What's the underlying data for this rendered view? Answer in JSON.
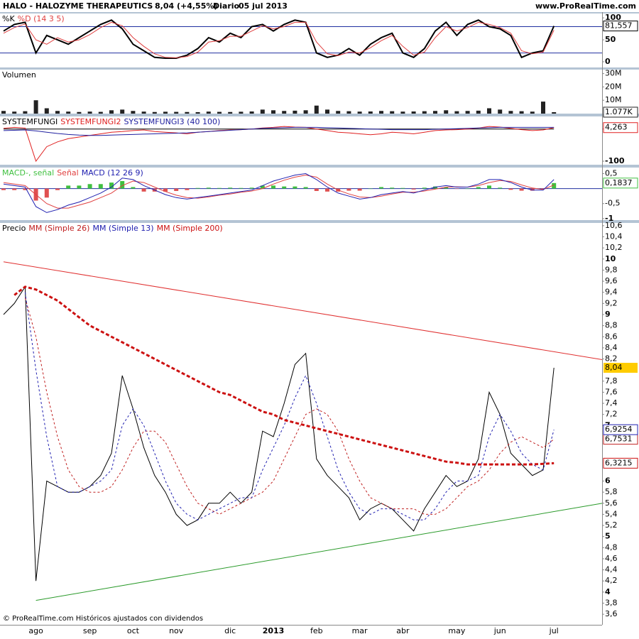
{
  "header": {
    "title": "HALO - HALOZYME THERAPEUTICS",
    "quote": "8,04 (+4,55%)",
    "period": "Diario",
    "date": "05 jul 2013",
    "site": "www.ProRealTime.com"
  },
  "footer": "© ProRealTime.com Históricos ajustados con dividendos",
  "chart_data": [
    {
      "type": "line",
      "ylim": [
        -13,
        110
      ],
      "yticks": [
        0,
        50,
        100
      ],
      "levels": [
        80,
        20
      ],
      "level_color": "#2030a0",
      "series": [
        {
          "name": "%K",
          "color": "#000000",
          "width": 2,
          "last_label": "81,557",
          "values": [
            70,
            85,
            90,
            20,
            60,
            50,
            40,
            55,
            70,
            85,
            95,
            75,
            40,
            25,
            10,
            8,
            8,
            15,
            30,
            55,
            45,
            65,
            55,
            80,
            85,
            70,
            85,
            95,
            90,
            20,
            10,
            15,
            30,
            15,
            40,
            55,
            65,
            20,
            10,
            30,
            70,
            90,
            60,
            85,
            95,
            80,
            75,
            60,
            10,
            20,
            25,
            81.557
          ]
        },
        {
          "name": "%D (14 3 5)",
          "color": "#e04040",
          "values": [
            65,
            78,
            86,
            50,
            40,
            55,
            45,
            50,
            62,
            78,
            90,
            82,
            55,
            35,
            18,
            10,
            9,
            12,
            22,
            45,
            48,
            58,
            58,
            70,
            82,
            75,
            80,
            90,
            90,
            45,
            18,
            14,
            22,
            20,
            32,
            48,
            60,
            35,
            15,
            22,
            55,
            80,
            70,
            78,
            90,
            85,
            78,
            65,
            25,
            18,
            22,
            72
          ]
        }
      ]
    },
    {
      "type": "bar",
      "title": "Volumen",
      "ylim": [
        0,
        33
      ],
      "yticks": [
        {
          "value": 10,
          "label": "10M"
        },
        {
          "value": 20,
          "label": "20M"
        },
        {
          "value": 30,
          "label": "30M"
        }
      ],
      "series": [
        {
          "color": "#222222",
          "last_label": "1.077K",
          "values": [
            2,
            1.5,
            1.8,
            10,
            4,
            2,
            1.5,
            1.2,
            1.5,
            1.3,
            2.5,
            3,
            2,
            1.5,
            1.2,
            1.4,
            1.3,
            1.2,
            1.1,
            1.5,
            1.3,
            1.2,
            1.4,
            1.6,
            3,
            2.5,
            2,
            2.2,
            2.5,
            6,
            3,
            2,
            1.8,
            1.5,
            1.6,
            2,
            1.8,
            1.5,
            1.6,
            1.8,
            2,
            2.5,
            1.8,
            2,
            2.2,
            4,
            3,
            2,
            1.8,
            1.5,
            9,
            1.077
          ]
        }
      ]
    },
    {
      "type": "line",
      "ylim": [
        -111,
        39
      ],
      "yticks": [
        0,
        -100
      ],
      "series": [
        {
          "name": "SYSTEMFUNGI",
          "color": "#000000",
          "values": [
            0,
            0,
            0,
            0,
            0,
            0,
            0,
            0,
            0,
            0,
            0,
            0,
            0,
            0,
            0,
            0,
            0,
            0,
            0,
            0,
            0,
            0,
            0,
            0,
            0,
            0,
            0,
            0,
            0,
            0,
            0,
            0,
            0,
            0,
            0,
            0,
            0,
            0,
            0,
            0,
            0,
            0,
            0,
            0,
            0,
            0,
            0,
            0,
            0,
            0,
            0,
            0
          ]
        },
        {
          "name": "SYSTEMFUNGI2",
          "color": "#e02020",
          "last_label": "4,263",
          "values": [
            2,
            5,
            3,
            -100,
            -55,
            -40,
            -30,
            -25,
            -20,
            -15,
            -10,
            -8,
            -5,
            -3,
            -8,
            -10,
            -12,
            -15,
            -10,
            -8,
            -5,
            -3,
            -2,
            0,
            3,
            5,
            8,
            6,
            5,
            0,
            -5,
            -10,
            -12,
            -15,
            -18,
            -15,
            -10,
            -12,
            -15,
            -10,
            -5,
            -3,
            -2,
            0,
            3,
            8,
            6,
            2,
            -2,
            -5,
            -3,
            4.263
          ]
        },
        {
          "name": "SYSTEMFUNGI3 (40 100)",
          "color": "#2020a0",
          "values": [
            -5,
            -4,
            -3,
            -6,
            -10,
            -14,
            -17,
            -19,
            -20,
            -20,
            -19,
            -18,
            -17,
            -16,
            -15,
            -14,
            -13,
            -12,
            -10,
            -8,
            -6,
            -4,
            -2,
            0,
            2,
            3,
            4,
            5,
            5,
            5,
            4,
            3,
            2,
            1,
            0,
            -1,
            -2,
            -2,
            -2,
            -2,
            -1,
            0,
            1,
            2,
            3,
            4,
            5,
            5,
            5,
            5,
            5,
            5
          ]
        }
      ]
    },
    {
      "type": "line",
      "ylim": [
        -1.05,
        0.7
      ],
      "levels": [
        0
      ],
      "level_color": "#2030a0",
      "yticks": [
        {
          "value": 0.5,
          "label": "0,5"
        },
        {
          "value": -0.5,
          "label": "-0,5"
        },
        -1
      ],
      "series": [
        {
          "name": "MACD-, señal",
          "type": "bar",
          "color": "#40c040",
          "negative_color": "#e05050",
          "last_label": "0,1837",
          "values": [
            -0.05,
            -0.05,
            -0.05,
            -0.4,
            -0.3,
            -0.05,
            0.1,
            0.1,
            0.15,
            0.15,
            0.2,
            0.25,
            0.05,
            -0.1,
            -0.1,
            -0.1,
            -0.08,
            -0.05,
            0.02,
            0.03,
            0.02,
            0.03,
            0.02,
            0.03,
            0.1,
            0.1,
            0.07,
            0.07,
            0.05,
            -0.08,
            -0.1,
            -0.1,
            -0.07,
            -0.07,
            0,
            0.05,
            0.03,
            0.02,
            -0.03,
            0.03,
            0.07,
            0.05,
            -0.01,
            0,
            0.05,
            0.1,
            0.03,
            -0.04,
            -0.07,
            -0.07,
            -0.02,
            0.1837
          ]
        },
        {
          "name": "Señal",
          "color": "#e04040",
          "values": [
            0.2,
            0.15,
            0.1,
            -0.2,
            -0.5,
            -0.65,
            -0.65,
            -0.55,
            -0.45,
            -0.3,
            -0.15,
            0.1,
            0.25,
            0.2,
            0.05,
            -0.1,
            -0.22,
            -0.3,
            -0.32,
            -0.28,
            -0.22,
            -0.18,
            -0.12,
            -0.08,
            0,
            0.15,
            0.28,
            0.38,
            0.45,
            0.38,
            0.15,
            -0.05,
            -0.18,
            -0.28,
            -0.3,
            -0.25,
            -0.18,
            -0.12,
            -0.12,
            -0.08,
            -0.02,
            0.05,
            0.06,
            0.05,
            0.1,
            0.2,
            0.27,
            0.24,
            0.12,
            0.02,
            -0.03,
            0.12
          ]
        },
        {
          "name": "MACD (12 26 9)",
          "color": "#2020b0",
          "values": [
            0.15,
            0.1,
            0.05,
            -0.6,
            -0.8,
            -0.7,
            -0.55,
            -0.45,
            -0.3,
            -0.15,
            0.05,
            0.35,
            0.3,
            0.1,
            -0.05,
            -0.2,
            -0.3,
            -0.35,
            -0.3,
            -0.25,
            -0.2,
            -0.15,
            -0.1,
            -0.05,
            0.1,
            0.25,
            0.35,
            0.45,
            0.5,
            0.3,
            0.05,
            -0.15,
            -0.25,
            -0.35,
            -0.3,
            -0.2,
            -0.15,
            -0.1,
            -0.15,
            -0.05,
            0.05,
            0.1,
            0.05,
            0.05,
            0.15,
            0.3,
            0.3,
            0.2,
            0.05,
            -0.05,
            -0.05,
            0.3
          ]
        }
      ]
    },
    {
      "type": "line",
      "title": "Precio",
      "ylim": [
        3.41,
        10.65
      ],
      "categories": [
        null,
        null,
        null,
        "ago",
        null,
        null,
        null,
        null,
        "sep",
        null,
        null,
        null,
        "oct",
        null,
        null,
        null,
        "nov",
        null,
        null,
        null,
        null,
        "dic",
        null,
        null,
        null,
        "2013",
        null,
        null,
        null,
        "feb",
        null,
        null,
        null,
        "mar",
        null,
        null,
        null,
        "abr",
        null,
        null,
        null,
        null,
        "may",
        null,
        null,
        null,
        "jun",
        null,
        null,
        null,
        null,
        "jul"
      ],
      "yticks": [
        {
          "value": 10.6,
          "label": "10,6"
        },
        {
          "value": 10.4,
          "label": "10,4"
        },
        {
          "value": 10.2,
          "label": "10,2"
        },
        10,
        {
          "value": 9.8,
          "label": "9,8"
        },
        {
          "value": 9.6,
          "label": "9,6"
        },
        {
          "value": 9.4,
          "label": "9,4"
        },
        {
          "value": 9.2,
          "label": "9,2"
        },
        9,
        {
          "value": 8.8,
          "label": "8,8"
        },
        {
          "value": 8.6,
          "label": "8,6"
        },
        {
          "value": 8.4,
          "label": "8,4"
        },
        {
          "value": 8.2,
          "label": "8,2"
        },
        {
          "value": 7.8,
          "label": "7,8"
        },
        {
          "value": 7.6,
          "label": "7,6"
        },
        {
          "value": 7.4,
          "label": "7,4"
        },
        {
          "value": 7.2,
          "label": "7,2"
        },
        7,
        6,
        {
          "value": 5.8,
          "label": "5,8"
        },
        {
          "value": 5.6,
          "label": "5,6"
        },
        {
          "value": 5.4,
          "label": "5,4"
        },
        {
          "value": 5.2,
          "label": "5,2"
        },
        5,
        {
          "value": 4.8,
          "label": "4,8"
        },
        {
          "value": 4.6,
          "label": "4,6"
        },
        {
          "value": 4.4,
          "label": "4,4"
        },
        {
          "value": 4.2,
          "label": "4,2"
        },
        4,
        {
          "value": 3.8,
          "label": "3,8"
        },
        {
          "value": 3.6,
          "label": "3,6"
        }
      ],
      "trendlines": [
        {
          "color": "#e03030",
          "x": [
            0,
            51
          ],
          "values": [
            9.95,
            8.33
          ]
        },
        {
          "color": "#2a9a2a",
          "x": [
            3,
            51
          ],
          "values": [
            3.85,
            5.45
          ]
        }
      ],
      "series": [
        {
          "color": "#000000",
          "last_label": "8,04",
          "label_bg": "#ffcc00",
          "values": [
            9.0,
            9.2,
            9.5,
            4.2,
            6.0,
            5.9,
            5.8,
            5.8,
            5.9,
            6.1,
            6.5,
            7.9,
            7.3,
            6.6,
            6.1,
            5.8,
            5.4,
            5.2,
            5.3,
            5.6,
            5.6,
            5.8,
            5.6,
            5.8,
            6.9,
            6.8,
            7.4,
            8.1,
            8.3,
            6.4,
            6.1,
            5.9,
            5.7,
            5.3,
            5.5,
            5.6,
            5.5,
            5.3,
            5.1,
            5.5,
            5.8,
            6.1,
            5.9,
            6.0,
            6.4,
            7.6,
            7.2,
            6.5,
            6.3,
            6.1,
            6.2,
            8.04
          ]
        },
        {
          "name": "MM (Simple 26)",
          "color": "#c02020",
          "dashed": true,
          "last_label": "6,7531",
          "values": [
            null,
            null,
            9.3,
            8.6,
            7.6,
            6.8,
            6.2,
            5.9,
            5.8,
            5.8,
            5.9,
            6.2,
            6.6,
            6.9,
            6.9,
            6.7,
            6.3,
            5.9,
            5.6,
            5.5,
            5.4,
            5.5,
            5.6,
            5.7,
            5.8,
            6.0,
            6.4,
            6.8,
            7.2,
            7.3,
            7.2,
            6.9,
            6.4,
            6.0,
            5.7,
            5.6,
            5.5,
            5.5,
            5.5,
            5.4,
            5.4,
            5.5,
            5.7,
            5.9,
            6.0,
            6.2,
            6.5,
            6.7,
            6.8,
            6.7,
            6.6,
            6.7531
          ]
        },
        {
          "name": "MM (Simple 13)",
          "color": "#2020b0",
          "dashed": true,
          "last_label": "6,9254",
          "values": [
            null,
            null,
            9.4,
            8.0,
            6.8,
            5.9,
            5.8,
            5.8,
            5.9,
            6.0,
            6.2,
            7.0,
            7.3,
            7.0,
            6.5,
            6.0,
            5.6,
            5.4,
            5.3,
            5.4,
            5.5,
            5.6,
            5.7,
            5.7,
            6.2,
            6.6,
            7.0,
            7.5,
            7.9,
            7.4,
            6.8,
            6.2,
            5.8,
            5.5,
            5.4,
            5.5,
            5.5,
            5.4,
            5.3,
            5.3,
            5.5,
            5.8,
            6.0,
            6.0,
            6.1,
            6.8,
            7.2,
            6.9,
            6.5,
            6.3,
            6.2,
            6.9254
          ]
        },
        {
          "name": "MM (Simple 200)",
          "color": "#cc1111",
          "dashed": true,
          "width": 3,
          "last_label": "6,3215",
          "values": [
            null,
            9.35,
            9.5,
            9.45,
            9.35,
            9.25,
            9.1,
            8.95,
            8.8,
            8.7,
            8.6,
            8.5,
            8.4,
            8.3,
            8.2,
            8.1,
            8.0,
            7.9,
            7.8,
            7.7,
            7.6,
            7.55,
            7.45,
            7.35,
            7.25,
            7.2,
            7.1,
            7.05,
            7.0,
            6.95,
            6.9,
            6.85,
            6.8,
            6.75,
            6.7,
            6.65,
            6.6,
            6.55,
            6.5,
            6.45,
            6.4,
            6.35,
            6.33,
            6.3,
            6.3,
            6.3,
            6.3,
            6.3,
            6.3,
            6.3,
            6.31,
            6.3215
          ]
        }
      ]
    }
  ]
}
